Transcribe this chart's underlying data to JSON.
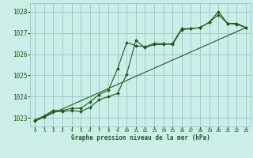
{
  "title": "Graphe pression niveau de la mer (hPa)",
  "background_color": "#cceee8",
  "grid_color": "#99cccc",
  "line_color": "#1a5c1a",
  "xlim": [
    -0.5,
    23.5
  ],
  "ylim": [
    1022.6,
    1028.4
  ],
  "yticks": [
    1023,
    1024,
    1025,
    1026,
    1027,
    1028
  ],
  "xticks": [
    0,
    1,
    2,
    3,
    4,
    5,
    6,
    7,
    8,
    9,
    10,
    11,
    12,
    13,
    14,
    15,
    16,
    17,
    18,
    19,
    20,
    21,
    22,
    23
  ],
  "series1_x": [
    0,
    1,
    2,
    3,
    4,
    5,
    6,
    7,
    8,
    9,
    10,
    11,
    12,
    13,
    14,
    15,
    16,
    17,
    18,
    19,
    20,
    21,
    22,
    23
  ],
  "series1_y": [
    1022.9,
    1023.1,
    1023.35,
    1023.35,
    1023.45,
    1023.45,
    1023.75,
    1024.1,
    1024.3,
    1025.3,
    1026.55,
    1026.4,
    1026.35,
    1026.5,
    1026.5,
    1026.45,
    1027.15,
    1027.2,
    1027.25,
    1027.5,
    1027.85,
    1027.45,
    1027.4,
    1027.25
  ],
  "series2_x": [
    0,
    1,
    2,
    3,
    4,
    5,
    6,
    7,
    8,
    9,
    10,
    11,
    12,
    13,
    14,
    15,
    16,
    17,
    18,
    19,
    20,
    21,
    22,
    23
  ],
  "series2_y": [
    1022.85,
    1023.05,
    1023.3,
    1023.3,
    1023.35,
    1023.3,
    1023.5,
    1023.85,
    1024.0,
    1024.15,
    1025.05,
    1026.65,
    1026.3,
    1026.45,
    1026.45,
    1026.5,
    1027.2,
    1027.2,
    1027.25,
    1027.5,
    1028.0,
    1027.45,
    1027.45,
    1027.25
  ],
  "series3_x": [
    0,
    23
  ],
  "series3_y": [
    1022.85,
    1027.25
  ]
}
